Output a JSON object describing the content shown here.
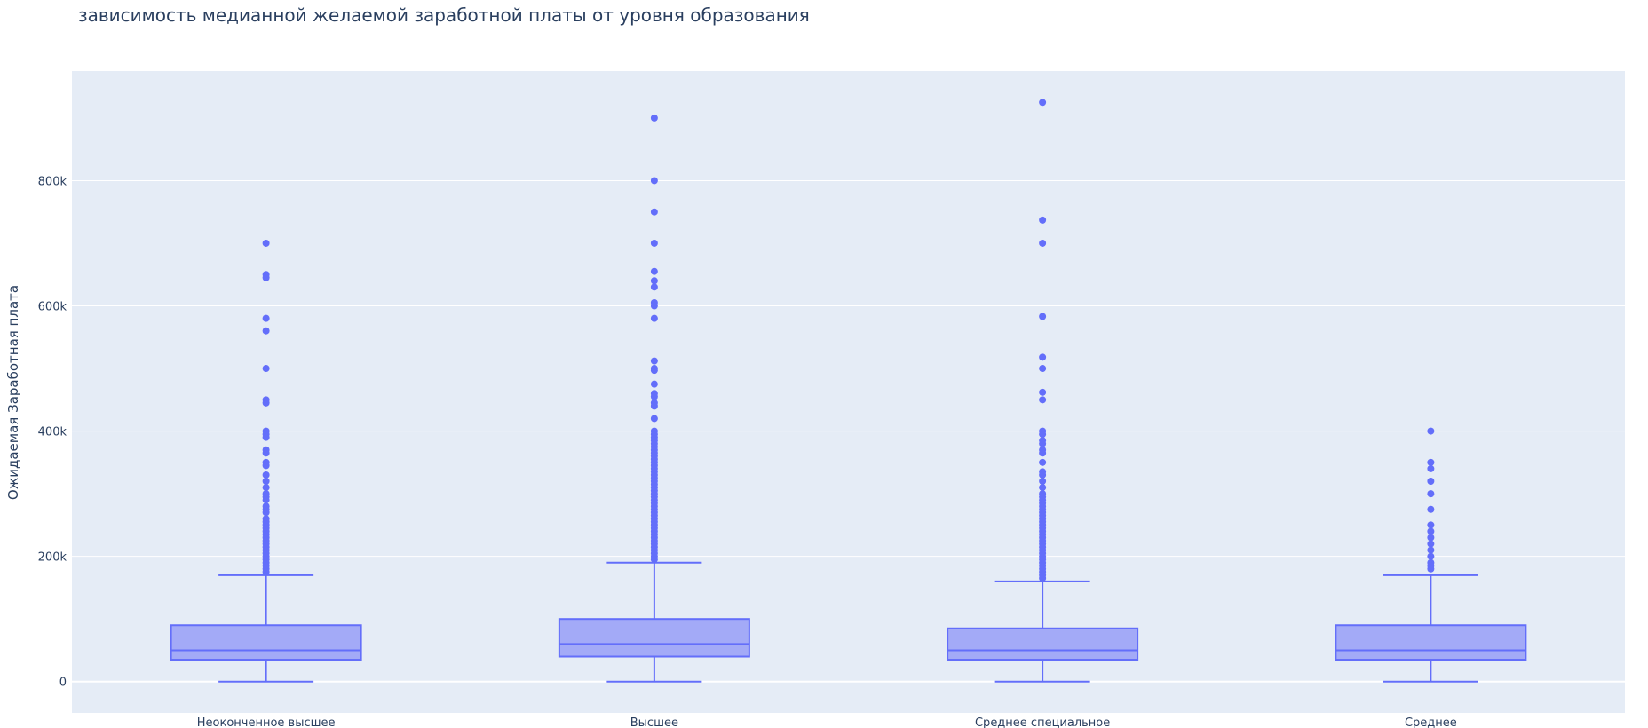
{
  "chart_data": {
    "type": "box",
    "title": "зависимость медианной желаемой заработной платы от уровня образования",
    "xlabel": "",
    "ylabel": "Ожидаемая Заработная плата",
    "ylim": [
      -50000,
      975000
    ],
    "yticks": [
      0,
      200000,
      400000,
      600000,
      800000
    ],
    "ytick_labels": [
      "0",
      "200k",
      "400k",
      "600k",
      "800k"
    ],
    "grid": true,
    "legend": "none",
    "colors": {
      "plot_bg": "#e5ecf6",
      "grid": "#ffffff",
      "box_line": "#636efa",
      "box_fill": "#a3aaf7",
      "text": "#2a3f5f"
    },
    "categories": [
      "Неоконченное высшее",
      "Высшее",
      "Среднее специальное",
      "Среднее"
    ],
    "boxes": [
      {
        "category": "Неоконченное высшее",
        "min": 0,
        "q1": 35000,
        "median": 50000,
        "q3": 90000,
        "upper_fence": 170000,
        "outliers": [
          700000,
          650000,
          645000,
          580000,
          560000,
          500000,
          450000,
          445000,
          400000,
          395000,
          390000,
          370000,
          365000,
          350000,
          345000,
          330000,
          320000,
          310000,
          300000,
          295000,
          290000,
          280000,
          275000,
          270000,
          260000,
          255000,
          250000,
          245000,
          240000,
          235000,
          230000,
          225000,
          220000,
          215000,
          210000,
          205000,
          200000,
          195000,
          190000,
          185000,
          180000,
          175000
        ]
      },
      {
        "category": "Высшее",
        "min": 0,
        "q1": 40000,
        "median": 60000,
        "q3": 100000,
        "upper_fence": 190000,
        "outliers": [
          900000,
          800000,
          750000,
          700000,
          655000,
          640000,
          630000,
          605000,
          600000,
          580000,
          512000,
          500000,
          497000,
          475000,
          460000,
          455000,
          445000,
          440000,
          420000,
          400000,
          395000,
          390000,
          385000,
          380000,
          375000,
          370000,
          365000,
          360000,
          355000,
          350000,
          345000,
          340000,
          335000,
          330000,
          325000,
          320000,
          315000,
          310000,
          305000,
          300000,
          295000,
          290000,
          285000,
          280000,
          275000,
          270000,
          265000,
          260000,
          255000,
          250000,
          245000,
          240000,
          235000,
          230000,
          225000,
          220000,
          215000,
          210000,
          205000,
          200000,
          195000
        ]
      },
      {
        "category": "Среднее специальное",
        "min": 0,
        "q1": 35000,
        "median": 50000,
        "q3": 85000,
        "upper_fence": 160000,
        "outliers": [
          925000,
          737000,
          700000,
          583000,
          518000,
          500000,
          462000,
          450000,
          400000,
          395000,
          385000,
          380000,
          370000,
          365000,
          350000,
          335000,
          330000,
          320000,
          310000,
          300000,
          295000,
          290000,
          285000,
          280000,
          275000,
          270000,
          265000,
          260000,
          255000,
          250000,
          245000,
          240000,
          235000,
          230000,
          225000,
          220000,
          215000,
          210000,
          205000,
          200000,
          195000,
          190000,
          185000,
          180000,
          175000,
          170000,
          165000
        ]
      },
      {
        "category": "Среднее",
        "min": 0,
        "q1": 35000,
        "median": 50000,
        "q3": 90000,
        "upper_fence": 170000,
        "outliers": [
          400000,
          350000,
          340000,
          320000,
          300000,
          275000,
          250000,
          240000,
          230000,
          220000,
          210000,
          200000,
          190000,
          185000,
          180000
        ]
      }
    ]
  }
}
